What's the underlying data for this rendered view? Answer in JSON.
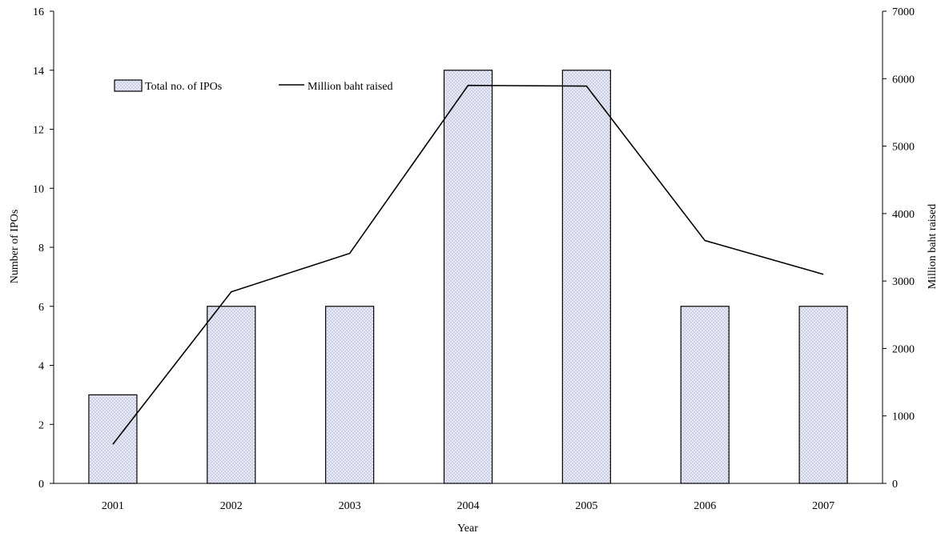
{
  "chart_data": {
    "type": "bar",
    "categories": [
      "2001",
      "2002",
      "2003",
      "2004",
      "2005",
      "2006",
      "2007"
    ],
    "series": [
      {
        "name": "Total no. of IPOs",
        "type": "bar",
        "axis": "left",
        "values": [
          3,
          6,
          6,
          14,
          14,
          6,
          6
        ]
      },
      {
        "name": "Million baht raised",
        "type": "line",
        "axis": "right",
        "values": [
          580,
          2840,
          3410,
          5900,
          5890,
          3600,
          3100
        ]
      }
    ],
    "xlabel": "Year",
    "ylabel": "Number of IPOs",
    "y2label": "Million baht raised",
    "ylim": [
      0,
      16
    ],
    "y2lim": [
      0,
      7000
    ],
    "yticks": [
      "0",
      "2",
      "4",
      "6",
      "8",
      "10",
      "12",
      "14",
      "16"
    ],
    "y2ticks": [
      "0",
      "1000",
      "2000",
      "3000",
      "4000",
      "5000",
      "6000",
      "7000"
    ],
    "grid": false,
    "legend_position": "top-left",
    "colors": {
      "bar_fill": "#e8eaf6",
      "bar_dot": "#8a8fb8",
      "bar_stroke": "#000000",
      "line": "#000000",
      "axis": "#000000"
    }
  }
}
